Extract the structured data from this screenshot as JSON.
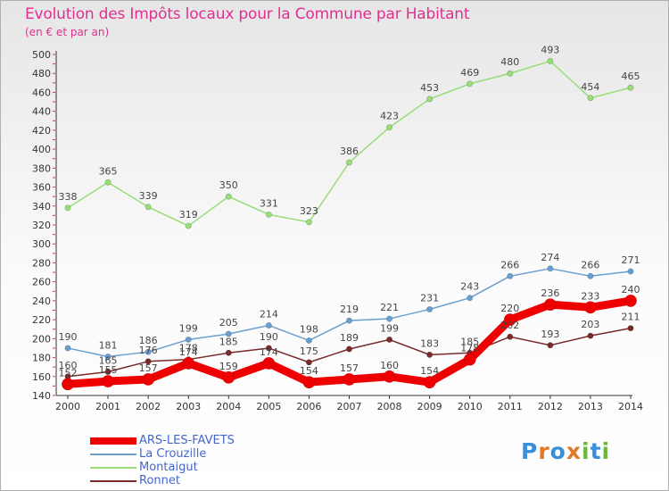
{
  "header": {
    "title": "Evolution des Impôts locaux pour la Commune par Habitant",
    "subtitle": "(en € et par an)"
  },
  "logo": {
    "text": "Proxiti",
    "letters": [
      {
        "ch": "P",
        "color": "#3a8fd8"
      },
      {
        "ch": "r",
        "color": "#e07a2a"
      },
      {
        "ch": "o",
        "color": "#3a8fd8"
      },
      {
        "ch": "x",
        "color": "#e07a2a"
      },
      {
        "ch": "i",
        "color": "#6cb83a"
      },
      {
        "ch": "t",
        "color": "#3a8fd8"
      },
      {
        "ch": "i",
        "color": "#6cb83a"
      }
    ]
  },
  "chart_data": {
    "type": "line",
    "title": "Evolution des Impôts locaux pour la Commune par Habitant",
    "subtitle": "(en € et par an)",
    "x": [
      "2000",
      "2001",
      "2002",
      "2003",
      "2004",
      "2005",
      "2006",
      "2007",
      "2008",
      "2009",
      "2010",
      "2011",
      "2012",
      "2013",
      "2014"
    ],
    "ylim": [
      140,
      500
    ],
    "ytick_step": 20,
    "grid": false,
    "legend_position": "bottom-left",
    "series": [
      {
        "name": "ARS-LES-FAVETS",
        "color": "#ee0000",
        "width": 9,
        "values": [
          152,
          155,
          157,
          174,
          159,
          174,
          154,
          157,
          160,
          154,
          178,
          220,
          236,
          233,
          240
        ],
        "labels": [
          "152",
          "155",
          "157",
          "174",
          "159",
          "174",
          "154",
          "157",
          "160",
          "154",
          "178",
          "220",
          "236",
          "233",
          "240"
        ]
      },
      {
        "name": "La Crouzille",
        "color": "#6a9fd0",
        "width": 1.5,
        "values": [
          190,
          181,
          186,
          199,
          205,
          214,
          198,
          219,
          221,
          231,
          243,
          266,
          274,
          266,
          271
        ],
        "labels": [
          "190",
          "181",
          "186",
          "199",
          "205",
          "214",
          "198",
          "219",
          "221",
          "231",
          "243",
          "266",
          "274",
          "266",
          "271"
        ]
      },
      {
        "name": "Montaigut",
        "color": "#99dd77",
        "width": 1.5,
        "values": [
          338,
          365,
          339,
          319,
          350,
          331,
          323,
          386,
          423,
          453,
          469,
          480,
          493,
          454,
          465
        ],
        "labels": [
          "338",
          "365",
          "339",
          "319",
          "350",
          "331",
          "323",
          "386",
          "423",
          "453",
          "469",
          "480",
          "493",
          "454",
          "465"
        ]
      },
      {
        "name": "Ronnet",
        "color": "#7a2a2a",
        "width": 1.5,
        "values": [
          160,
          165,
          176,
          178,
          185,
          190,
          175,
          189,
          199,
          183,
          185,
          202,
          193,
          203,
          211
        ],
        "labels": [
          "160",
          "165",
          "176",
          "178",
          "185",
          "190",
          "175",
          "189",
          "199",
          "183",
          "185",
          "202",
          "193",
          "203",
          "211"
        ]
      }
    ]
  }
}
